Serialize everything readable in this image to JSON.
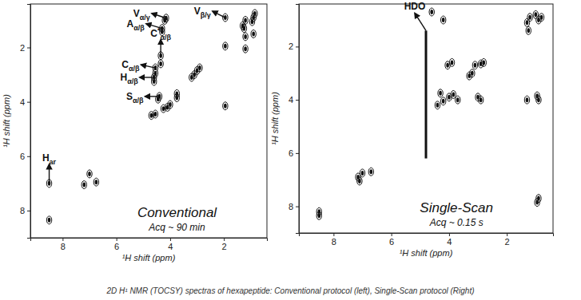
{
  "chart_data": [
    {
      "type": "scatter",
      "title": "Conventional",
      "subtitle": "Acq ~ 90 min",
      "x_label": "¹H shift (ppm)",
      "y_label": "¹H shift (ppm)",
      "xlim": [
        9.2,
        0.4
      ],
      "ylim": [
        0.4,
        9.0
      ],
      "xticks": [
        8,
        6,
        4,
        2
      ],
      "yticks": [
        2,
        4,
        6,
        8
      ],
      "color": "#111111",
      "marker": "ellipse",
      "x": [
        0.9,
        0.95,
        0.85,
        1.2,
        1.25,
        1.2,
        1.3,
        0.9,
        1.95,
        4.15,
        4.2,
        4.3,
        4.3,
        1.95,
        1.2,
        4.35,
        4.35,
        4.55,
        4.55,
        4.6,
        4.6,
        4.4,
        4.45,
        3.1,
        3.0,
        2.9,
        3.2,
        3.75,
        3.75,
        4.1,
        4.25,
        4.0,
        4.55,
        4.7,
        1.95,
        8.5,
        8.5,
        7.2,
        7.0,
        6.75
      ],
      "y": [
        0.9,
        1.05,
        0.75,
        1.0,
        1.3,
        1.6,
        1.2,
        1.5,
        0.9,
        0.92,
        1.0,
        1.3,
        1.42,
        1.95,
        2.05,
        2.3,
        2.6,
        2.75,
        2.95,
        3.1,
        3.25,
        3.8,
        3.9,
        3.0,
        2.85,
        2.75,
        3.1,
        3.7,
        3.85,
        4.2,
        4.25,
        4.1,
        4.45,
        4.5,
        4.15,
        7.0,
        8.35,
        7.05,
        6.65,
        6.95
      ],
      "annotations": [
        {
          "text": "V",
          "sub": "α/γ",
          "x": 4.15,
          "y": 0.92
        },
        {
          "text": "A",
          "sub": "α/β",
          "x": 4.3,
          "y": 1.3
        },
        {
          "text": "V",
          "sub": "β/γ",
          "x": 1.95,
          "y": 0.9
        },
        {
          "text": "C",
          "sup": "*",
          "sub": "α/β",
          "x": 4.35,
          "y": 2.3
        },
        {
          "text": "C",
          "sub": "α/β",
          "x": 4.55,
          "y": 2.75
        },
        {
          "text": "H",
          "sub": "α/β",
          "x": 4.6,
          "y": 3.1
        },
        {
          "text": "S",
          "sub": "α/β",
          "x": 4.4,
          "y": 3.8
        },
        {
          "text": "H",
          "sub": "ar",
          "x": 8.5,
          "y": 7.0
        }
      ]
    },
    {
      "type": "scatter",
      "title": "Single-Scan",
      "subtitle": "Acq ~ 0.15 s",
      "x_label": "¹H shift (ppm)",
      "y_label": "¹H shift (ppm)",
      "xlim": [
        9.2,
        0.4
      ],
      "ylim": [
        0.4,
        9.0
      ],
      "xticks": [
        8,
        6,
        4,
        2
      ],
      "yticks": [
        2,
        4,
        6,
        8
      ],
      "color": "#111111",
      "marker": "ellipse",
      "x": [
        8.5,
        8.5,
        7.15,
        7.1,
        7.0,
        6.7,
        4.6,
        4.2,
        3.9,
        4.05,
        3.1,
        2.9,
        2.8,
        3.2,
        3.3,
        4.3,
        4.0,
        3.85,
        4.2,
        3.7,
        3.0,
        2.9,
        4.4,
        1.2,
        1.0,
        0.9,
        0.8,
        1.3,
        1.25,
        0.9,
        0.95,
        1.3,
        0.9,
        0.95
      ],
      "y": [
        8.2,
        8.35,
        6.9,
        7.05,
        6.75,
        6.7,
        0.7,
        1.0,
        2.6,
        2.7,
        2.7,
        2.65,
        2.6,
        3.0,
        3.1,
        3.75,
        3.9,
        3.8,
        4.05,
        4.0,
        3.9,
        4.0,
        4.2,
        0.9,
        0.8,
        1.0,
        0.9,
        1.1,
        1.4,
        4.0,
        3.85,
        4.0,
        7.7,
        7.85
      ],
      "ridge": {
        "x": [
          4.8,
          4.8
        ],
        "y": [
          1.4,
          6.2
        ]
      },
      "annotations": [
        {
          "text": "HDO",
          "x": 4.8,
          "y": 1.4
        }
      ]
    }
  ],
  "caption": "2D H¹ NMR (TOCSY)  spectras of hexapeptide: Conventional protocol (left), Single-Scan protocol (Right)"
}
